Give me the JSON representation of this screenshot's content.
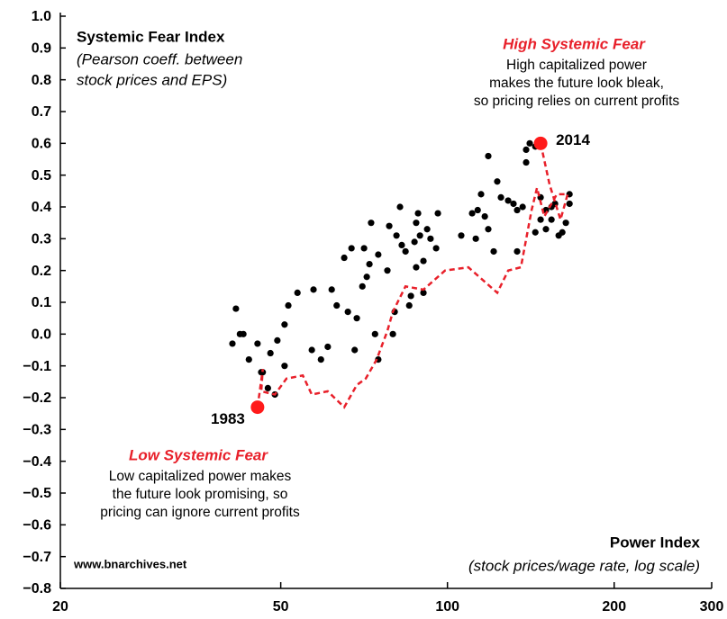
{
  "chart_data": {
    "type": "scatter",
    "xscale": "log",
    "title": "Systemic Fear Index",
    "subtitle": [
      "(Pearson coeff. between",
      "stock prices and EPS)"
    ],
    "xlabel": "Power Index",
    "xlabel_note": "(stock prices/wage rate, log scale)",
    "source": "www.bnarchives.net",
    "annotations": [
      {
        "title": "High Systemic Fear",
        "lines": [
          "High capitalized power",
          "makes the future look bleak,",
          "so pricing relies on current profits"
        ]
      },
      {
        "title": "Low Systemic Fear",
        "lines": [
          "Low capitalized power makes",
          "the future look promising, so",
          "pricing can ignore current profits"
        ]
      }
    ],
    "annotation_color": "#e8202a",
    "xlim": [
      20,
      300
    ],
    "xticks": [
      20,
      50,
      100,
      200,
      300
    ],
    "ylim": [
      -0.8,
      1.0
    ],
    "yticks": [
      {
        "value": 1.0,
        "label": "1.0"
      },
      0.9,
      0.8,
      0.7,
      0.6,
      0.5,
      0.4,
      0.3,
      0.2,
      0.1,
      {
        "value": 0.0,
        "label": "0.0"
      },
      {
        "value": -0.1,
        "label": "−0.1"
      },
      {
        "value": -0.2,
        "label": "−0.2"
      },
      {
        "value": -0.3,
        "label": "−0.3"
      },
      {
        "value": -0.4,
        "label": "−0.4"
      },
      {
        "value": -0.5,
        "label": "−0.5"
      },
      {
        "value": -0.6,
        "label": "−0.6"
      },
      {
        "value": -0.7,
        "label": "−0.7"
      },
      {
        "value": -0.8,
        "label": "−0.8"
      }
    ],
    "points": {
      "color": "#000000",
      "x": [
        41.5,
        40.9,
        42.2,
        42.8,
        43.8,
        45.4,
        46.1,
        46.4,
        47.4,
        48.8,
        47.9,
        49.3,
        50.8,
        50.8,
        51.6,
        53.6,
        57.3,
        56.9,
        59.1,
        60.8,
        61.8,
        63.1,
        65.1,
        66.1,
        67.1,
        68.6,
        70.2,
        70.7,
        71.5,
        72.3,
        72.8,
        75.0,
        78.5,
        80.9,
        82.1,
        82.7,
        84.0,
        85.3,
        85.9,
        87.8,
        87.8,
        89.2,
        90.5,
        90.5,
        91.9,
        93.2,
        95.4,
        96.1,
        87.2,
        88.5,
        77.9,
        68.0,
        75.0,
        74.0,
        79.7,
        80.3,
        105.9,
        110.8,
        112.5,
        113.4,
        115.0,
        116.8,
        118.5,
        118.5,
        121.2,
        123.0,
        124.9,
        128.7,
        131.6,
        133.6,
        136.7,
        138.7,
        138.7,
        140.8,
        144.1,
        147.3,
        150.6,
        150.6,
        154.1,
        156.4,
        158.8,
        161.2,
        163.6,
        166.1,
        166.1,
        144.1,
        147.3,
        154.1,
        133.6
      ],
      "y": [
        0.08,
        -0.03,
        0.0,
        0.0,
        -0.08,
        -0.03,
        -0.12,
        -0.12,
        -0.17,
        -0.19,
        -0.06,
        -0.02,
        -0.1,
        0.03,
        0.09,
        0.13,
        0.14,
        -0.05,
        -0.08,
        -0.04,
        0.14,
        0.09,
        0.24,
        0.07,
        0.27,
        0.05,
        0.15,
        0.27,
        0.18,
        0.22,
        0.35,
        0.25,
        0.34,
        0.31,
        0.4,
        0.28,
        0.26,
        0.09,
        0.12,
        0.35,
        0.21,
        0.31,
        0.13,
        0.23,
        0.33,
        0.3,
        0.27,
        0.38,
        0.29,
        0.38,
        0.2,
        -0.05,
        -0.08,
        0.0,
        0.0,
        0.07,
        0.31,
        0.38,
        0.3,
        0.39,
        0.44,
        0.37,
        0.56,
        0.33,
        0.26,
        0.48,
        0.43,
        0.42,
        0.41,
        0.26,
        0.4,
        0.58,
        0.54,
        0.6,
        0.59,
        0.43,
        0.39,
        0.33,
        0.36,
        0.41,
        0.31,
        0.32,
        0.35,
        0.44,
        0.41,
        0.32,
        0.36,
        0.4,
        0.39
      ]
    },
    "path": {
      "color": "#e8202a",
      "dashed": true,
      "x": [
        45.4,
        46.4,
        46.1,
        48.8,
        51.2,
        54.8,
        56.9,
        60.8,
        65.1,
        68.6,
        71.2,
        74.5,
        77.9,
        79.7,
        84.0,
        90.5,
        99.0,
        109.1,
        123.0,
        128.7,
        135.7,
        141.9,
        145.1,
        149.6,
        157.6,
        164.8,
        160.0,
        152.9,
        147.3
      ],
      "y": [
        -0.23,
        -0.11,
        -0.18,
        -0.19,
        -0.14,
        -0.13,
        -0.19,
        -0.18,
        -0.23,
        -0.16,
        -0.14,
        -0.08,
        0.01,
        0.07,
        0.15,
        0.14,
        0.2,
        0.21,
        0.13,
        0.2,
        0.21,
        0.39,
        0.46,
        0.37,
        0.44,
        0.44,
        0.36,
        0.47,
        0.6
      ]
    },
    "highlights": [
      {
        "label": "1983",
        "x": 45.4,
        "y": -0.23
      },
      {
        "label": "2014",
        "x": 147.3,
        "y": 0.6
      }
    ],
    "highlight_color": "#ff1a1a"
  }
}
